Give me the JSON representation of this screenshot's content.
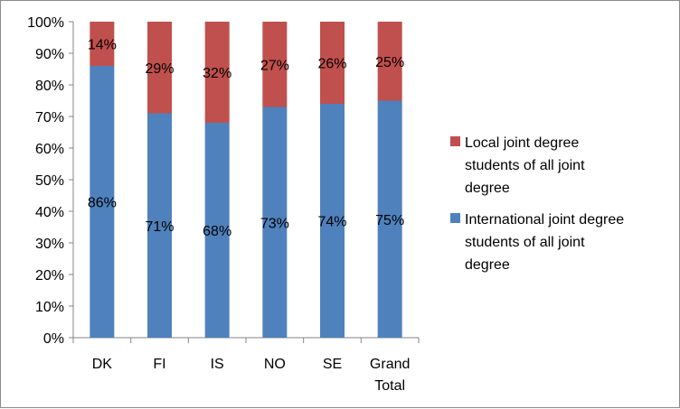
{
  "chart_data": {
    "type": "bar",
    "stacked": true,
    "percent_stacked": true,
    "categories": [
      "DK",
      "FI",
      "IS",
      "NO",
      "SE",
      "Grand Total"
    ],
    "category_lines": [
      [
        "DK"
      ],
      [
        "FI"
      ],
      [
        "IS"
      ],
      [
        "NO"
      ],
      [
        "SE"
      ],
      [
        "Grand",
        "Total"
      ]
    ],
    "series": [
      {
        "name": "International joint degree students of all joint degree",
        "name_lines": [
          "International joint degree",
          "students of all joint",
          "degree"
        ],
        "values": [
          0.86,
          0.71,
          0.68,
          0.73,
          0.74,
          0.75
        ],
        "labels": [
          "86%",
          "71%",
          "68%",
          "73%",
          "74%",
          "75%"
        ],
        "color": "#4f81bd"
      },
      {
        "name": "Local joint degree students of all joint degree",
        "name_lines": [
          "Local joint degree",
          "students of all joint",
          "degree"
        ],
        "values": [
          0.14,
          0.29,
          0.32,
          0.27,
          0.26,
          0.25
        ],
        "labels": [
          "14%",
          "29%",
          "32%",
          "27%",
          "26%",
          "25%"
        ],
        "color": "#c0504d"
      }
    ],
    "yticks": [
      "0%",
      "10%",
      "20%",
      "30%",
      "40%",
      "50%",
      "60%",
      "70%",
      "80%",
      "90%",
      "100%"
    ],
    "ylim": [
      0,
      1
    ],
    "grid": false,
    "legend_position": "right",
    "legend_order": [
      1,
      0
    ]
  }
}
